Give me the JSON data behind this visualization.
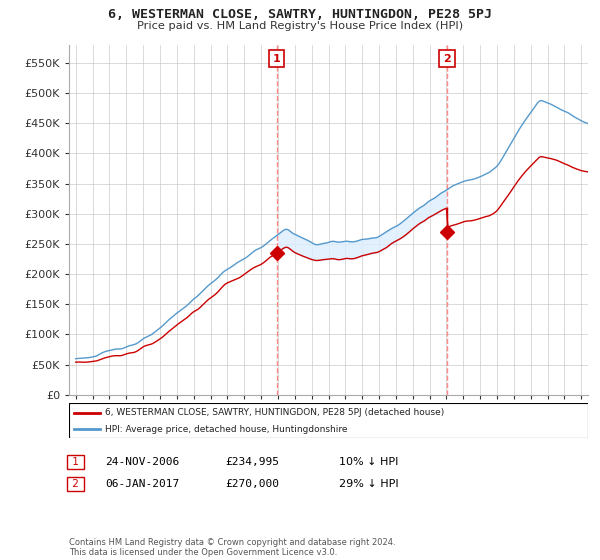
{
  "title": "6, WESTERMAN CLOSE, SAWTRY, HUNTINGDON, PE28 5PJ",
  "subtitle": "Price paid vs. HM Land Registry's House Price Index (HPI)",
  "ylabel_ticks": [
    "£0",
    "£50K",
    "£100K",
    "£150K",
    "£200K",
    "£250K",
    "£300K",
    "£350K",
    "£400K",
    "£450K",
    "£500K",
    "£550K"
  ],
  "ytick_values": [
    0,
    50000,
    100000,
    150000,
    200000,
    250000,
    300000,
    350000,
    400000,
    450000,
    500000,
    550000
  ],
  "ylim": [
    0,
    580000
  ],
  "sale1_year": 2006.917,
  "sale1_price": 234995,
  "sale2_year": 2017.04,
  "sale2_price": 270000,
  "sale1_date": "24-NOV-2006",
  "sale2_date": "06-JAN-2017",
  "sale1_hpi_diff": "10% ↓ HPI",
  "sale2_hpi_diff": "29% ↓ HPI",
  "legend_line1": "6, WESTERMAN CLOSE, SAWTRY, HUNTINGDON, PE28 5PJ (detached house)",
  "legend_line2": "HPI: Average price, detached house, Huntingdonshire",
  "footnote": "Contains HM Land Registry data © Crown copyright and database right 2024.\nThis data is licensed under the Open Government Licence v3.0.",
  "sale_color": "#cc0000",
  "hpi_color": "#5599cc",
  "shade_color": "#ddeeff",
  "vline_color": "#ff8888",
  "background_color": "#ffffff",
  "grid_color": "#cccccc",
  "xlim_left": 1994.6,
  "xlim_right": 2025.4
}
